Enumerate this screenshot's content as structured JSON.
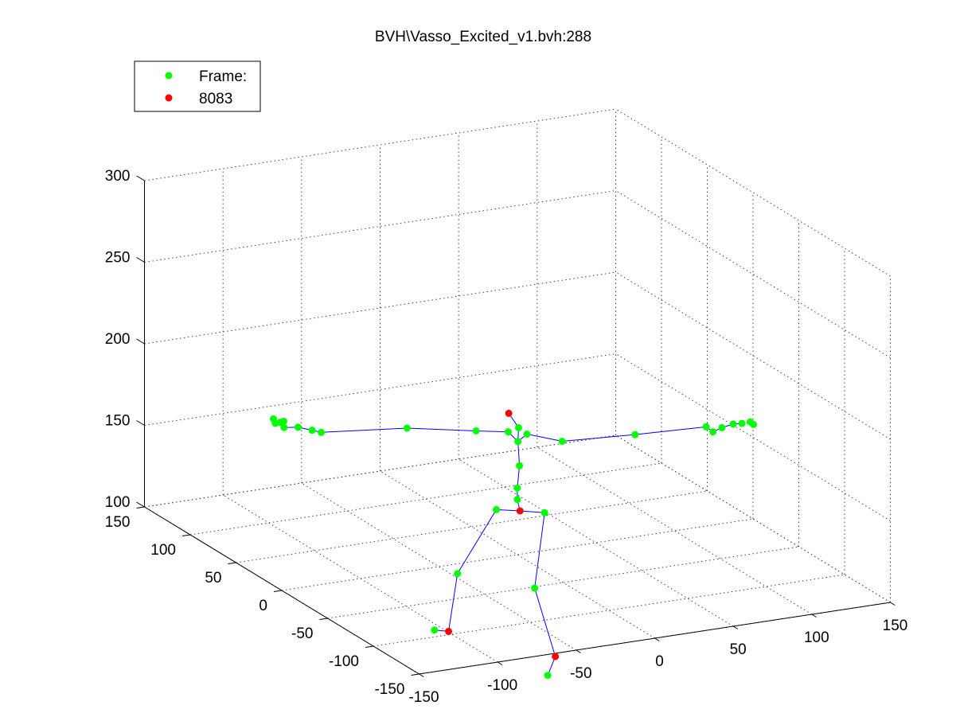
{
  "chart_data": {
    "type": "scatter",
    "title": "BVH\\Vasso_Excited_v1.bvh:288",
    "xlabel": "",
    "ylabel": "",
    "zlabel": "",
    "xlim": [
      -150,
      150
    ],
    "ylim": [
      -150,
      150
    ],
    "zlim": [
      100,
      300
    ],
    "x_ticks": [
      "-150",
      "-100",
      "-50",
      "0",
      "50",
      "100",
      "150"
    ],
    "y_ticks": [
      "-150",
      "-100",
      "-50",
      "0",
      "50",
      "100",
      "150"
    ],
    "z_ticks": [
      "100",
      "150",
      "200",
      "250",
      "300"
    ],
    "grid": true,
    "legend_position": "top-left",
    "legend": [
      {
        "label": "Frame:",
        "color": "#00ff00"
      },
      {
        "label": "8083",
        "color": "#ff0000"
      }
    ],
    "colors": {
      "frame_points": "#00ff00",
      "highlight_points": "#ff0000",
      "bones": "#0000ff"
    },
    "joints": [
      {
        "id": "hips",
        "x": -3,
        "y": -8,
        "z": 130,
        "group": "highlight"
      },
      {
        "id": "lhip",
        "x": -14,
        "y": -1,
        "z": 130,
        "group": "frame"
      },
      {
        "id": "rhip",
        "x": 8,
        "y": -16,
        "z": 130,
        "group": "frame"
      },
      {
        "id": "lknee",
        "x": -30,
        "y": 14,
        "z": 88,
        "group": "frame"
      },
      {
        "id": "lankle",
        "x": -31,
        "y": 22,
        "z": 50,
        "group": "highlight"
      },
      {
        "id": "ltoe",
        "x": -33,
        "y": 34,
        "z": 47,
        "group": "frame"
      },
      {
        "id": "rknee",
        "x": 4,
        "y": -12,
        "z": 83,
        "group": "frame"
      },
      {
        "id": "rankle",
        "x": 16,
        "y": -14,
        "z": 40,
        "group": "highlight"
      },
      {
        "id": "rtoe",
        "x": 10,
        "y": -16,
        "z": 30,
        "group": "frame"
      },
      {
        "id": "spine1",
        "x": -3,
        "y": -5,
        "z": 136,
        "group": "frame"
      },
      {
        "id": "spine2",
        "x": -3,
        "y": -5,
        "z": 143,
        "group": "frame"
      },
      {
        "id": "spine3",
        "x": -1,
        "y": -4,
        "z": 156,
        "group": "frame"
      },
      {
        "id": "neck",
        "x": -2,
        "y": -4,
        "z": 171,
        "group": "frame"
      },
      {
        "id": "head",
        "x": -1,
        "y": -3,
        "z": 179,
        "group": "frame"
      },
      {
        "id": "head_top",
        "x": -9,
        "y": -6,
        "z": 190,
        "group": "highlight"
      },
      {
        "id": "lcollar",
        "x": -7,
        "y": -2,
        "z": 177,
        "group": "frame"
      },
      {
        "id": "lshoulder",
        "x": -24,
        "y": 4,
        "z": 178,
        "group": "frame"
      },
      {
        "id": "lelbow",
        "x": -65,
        "y": 9,
        "z": 184,
        "group": "frame"
      },
      {
        "id": "lwrist",
        "x": -115,
        "y": 17,
        "z": 186,
        "group": "frame"
      },
      {
        "id": "lhand",
        "x": -122,
        "y": 15,
        "z": 189,
        "group": "frame"
      },
      {
        "id": "lf1",
        "x": -128,
        "y": 20,
        "z": 190,
        "group": "frame"
      },
      {
        "id": "lf2",
        "x": -134,
        "y": 25,
        "z": 189,
        "group": "frame"
      },
      {
        "id": "lf3",
        "x": -137,
        "y": 24,
        "z": 193,
        "group": "frame"
      },
      {
        "id": "lf4",
        "x": -139,
        "y": 26,
        "z": 192,
        "group": "frame"
      },
      {
        "id": "lf5",
        "x": -139,
        "y": 28,
        "z": 194,
        "group": "frame"
      },
      {
        "id": "lf6",
        "x": -133,
        "y": 27,
        "z": 192,
        "group": "frame"
      },
      {
        "id": "rcollar",
        "x": 2,
        "y": -7,
        "z": 176,
        "group": "frame"
      },
      {
        "id": "rshoulder",
        "x": 18,
        "y": -18,
        "z": 173,
        "group": "frame"
      },
      {
        "id": "relbow",
        "x": 58,
        "y": -29,
        "z": 175,
        "group": "frame"
      },
      {
        "id": "rwrist",
        "x": 98,
        "y": -38,
        "z": 177,
        "group": "frame"
      },
      {
        "id": "rhand",
        "x": 100,
        "y": -42,
        "z": 175,
        "group": "frame"
      },
      {
        "id": "rf1",
        "x": 104,
        "y": -45,
        "z": 178,
        "group": "frame"
      },
      {
        "id": "rf2",
        "x": 110,
        "y": -47,
        "z": 180,
        "group": "frame"
      },
      {
        "id": "rf3",
        "x": 115,
        "y": -48,
        "z": 180,
        "group": "frame"
      },
      {
        "id": "rf4",
        "x": 119,
        "y": -50,
        "z": 181,
        "group": "frame"
      },
      {
        "id": "rf5",
        "x": 120,
        "y": -52,
        "z": 180,
        "group": "frame"
      }
    ],
    "bones": [
      [
        "hips",
        "lhip"
      ],
      [
        "lhip",
        "lknee"
      ],
      [
        "lknee",
        "lankle"
      ],
      [
        "lankle",
        "ltoe"
      ],
      [
        "hips",
        "rhip"
      ],
      [
        "rhip",
        "rknee"
      ],
      [
        "rknee",
        "rankle"
      ],
      [
        "rankle",
        "rtoe"
      ],
      [
        "hips",
        "spine1"
      ],
      [
        "spine1",
        "spine2"
      ],
      [
        "spine2",
        "spine3"
      ],
      [
        "spine3",
        "neck"
      ],
      [
        "neck",
        "head"
      ],
      [
        "head",
        "head_top"
      ],
      [
        "neck",
        "lcollar"
      ],
      [
        "lcollar",
        "lshoulder"
      ],
      [
        "lshoulder",
        "lelbow"
      ],
      [
        "lelbow",
        "lwrist"
      ],
      [
        "lwrist",
        "lhand"
      ],
      [
        "lhand",
        "lf1"
      ],
      [
        "lf1",
        "lf2"
      ],
      [
        "lf2",
        "lf3"
      ],
      [
        "neck",
        "rcollar"
      ],
      [
        "rcollar",
        "rshoulder"
      ],
      [
        "rshoulder",
        "relbow"
      ],
      [
        "relbow",
        "rwrist"
      ],
      [
        "rwrist",
        "rhand"
      ],
      [
        "rhand",
        "rf1"
      ],
      [
        "rf1",
        "rf2"
      ],
      [
        "rf2",
        "rf3"
      ]
    ]
  }
}
